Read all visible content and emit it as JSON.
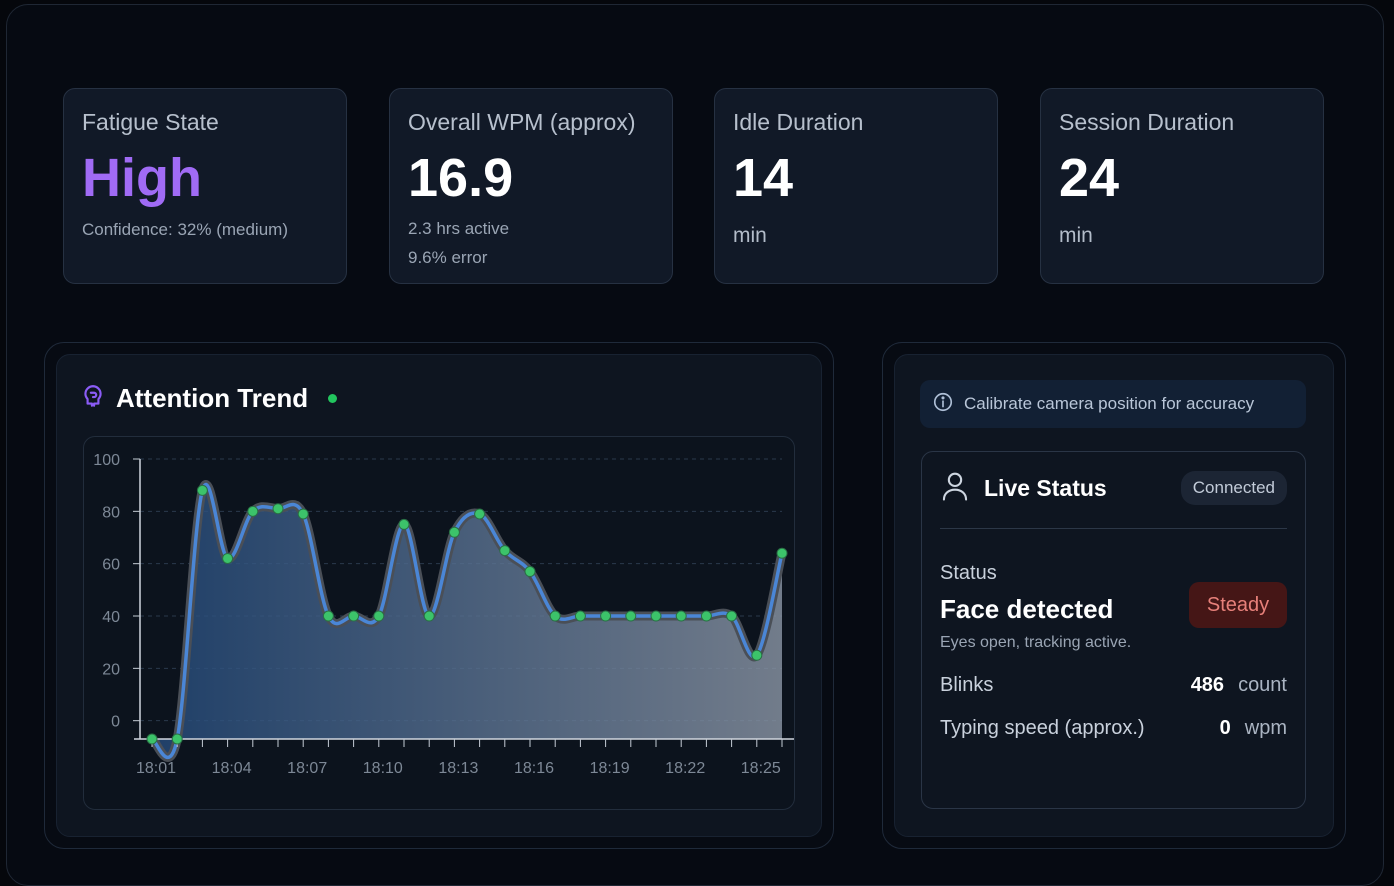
{
  "cards": [
    {
      "title": "Fatigue State",
      "value": "High",
      "sub": "Confidence: 32% (medium)"
    },
    {
      "title": "Overall WPM (approx)",
      "value": "16.9",
      "sub1": "2.3 hrs active",
      "sub2": "9.6% error"
    },
    {
      "title": "Idle Duration",
      "value": "14",
      "unit": "min"
    },
    {
      "title": "Session Duration",
      "value": "24",
      "unit": "min"
    }
  ],
  "attention": {
    "title": "Attention Trend",
    "icon": "brain-icon",
    "live_color": "#22c55e"
  },
  "chart_data": {
    "type": "area",
    "x": [
      "18:01",
      "18:02",
      "18:03",
      "18:04",
      "18:05",
      "18:06",
      "18:07",
      "18:08",
      "18:09",
      "18:10",
      "18:11",
      "18:12",
      "18:13",
      "18:14",
      "18:15",
      "18:16",
      "18:17",
      "18:18",
      "18:19",
      "18:20",
      "18:21",
      "18:22",
      "18:23",
      "18:24",
      "18:25",
      "18:26"
    ],
    "x_tick_labels": [
      "18:01",
      "18:04",
      "18:07",
      "18:10",
      "18:13",
      "18:16",
      "18:19",
      "18:22",
      "18:25"
    ],
    "values": [
      -7,
      -7,
      88,
      62,
      80,
      81,
      79,
      40,
      40,
      40,
      75,
      40,
      72,
      79,
      65,
      57,
      40,
      40,
      40,
      40,
      40,
      40,
      40,
      40,
      25,
      64
    ],
    "y_ticks": [
      "0",
      "20",
      "40",
      "60",
      "80",
      "100"
    ],
    "ylim": [
      -7,
      100
    ],
    "grid": true,
    "line_color": "#4a86d6",
    "point_color": "#3cc36a"
  },
  "calibration": {
    "text": "Calibrate camera position for accuracy",
    "icon": "info-icon"
  },
  "live_status": {
    "title": "Live Status",
    "icon": "user-icon",
    "connection": "Connected",
    "status_label": "Status",
    "status_value": "Face detected",
    "status_badge": "Steady",
    "status_desc": "Eyes open, tracking active.",
    "blinks_label": "Blinks",
    "blinks_value": "486",
    "blinks_unit": "count",
    "typing_label": "Typing speed (approx.)",
    "typing_value": "0",
    "typing_unit": "wpm"
  }
}
